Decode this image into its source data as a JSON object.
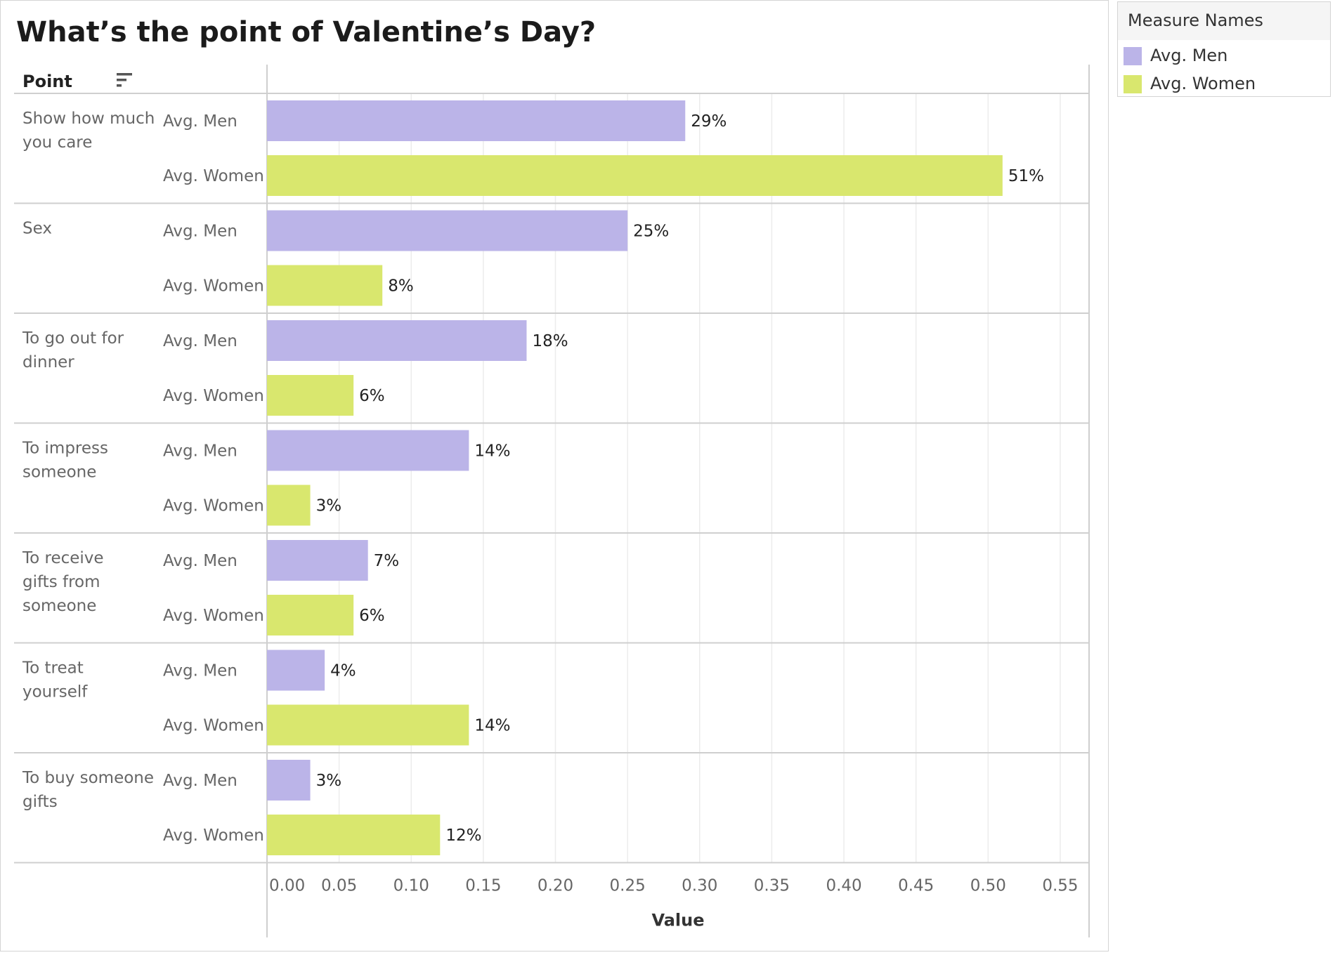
{
  "chart_data": {
    "type": "bar",
    "orientation": "horizontal",
    "title": "What’s the point of Valentine’s Day?",
    "row_header": "Point",
    "xlabel": "Value",
    "xlim": [
      0,
      0.57
    ],
    "x_ticks": [
      "0.00",
      "0.05",
      "0.10",
      "0.15",
      "0.20",
      "0.25",
      "0.30",
      "0.35",
      "0.40",
      "0.45",
      "0.50",
      "0.55"
    ],
    "grid": true,
    "legend_title": "Measure Names",
    "legend_position": "top-right",
    "categories": [
      "Show how much you care",
      "Sex",
      "To go out for dinner",
      "To impress someone",
      "To receive gifts from someone",
      "To treat yourself",
      "To buy someone gifts"
    ],
    "series": [
      {
        "name": "Avg. Men",
        "color": "#bbb4e8",
        "values": [
          0.29,
          0.25,
          0.18,
          0.14,
          0.07,
          0.04,
          0.03
        ],
        "labels": [
          "29%",
          "25%",
          "18%",
          "14%",
          "7%",
          "4%",
          "3%"
        ]
      },
      {
        "name": "Avg. Women",
        "color": "#d9e76e",
        "values": [
          0.51,
          0.08,
          0.06,
          0.03,
          0.06,
          0.14,
          0.12
        ],
        "labels": [
          "51%",
          "8%",
          "6%",
          "3%",
          "6%",
          "14%",
          "12%"
        ]
      }
    ]
  }
}
